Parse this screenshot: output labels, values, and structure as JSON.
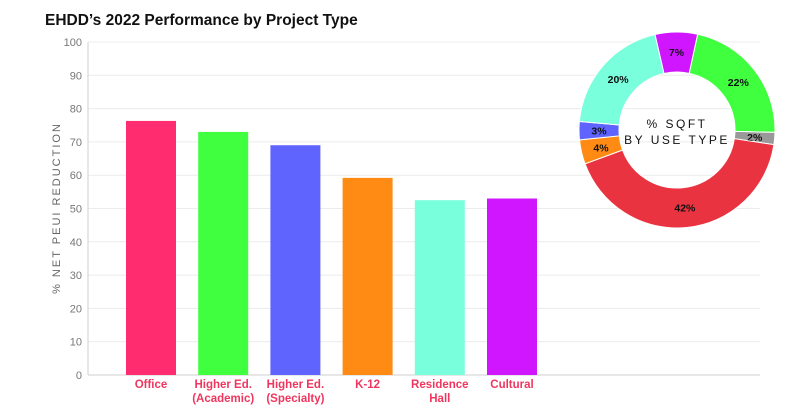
{
  "chart_data": [
    {
      "type": "bar",
      "title": "EHDD’s 2022 Performance by Project Type",
      "ylabel": "% NET PEUI REDUCTION",
      "xlabel": "",
      "ylim": [
        0,
        100
      ],
      "yticks": [
        0,
        10,
        20,
        30,
        40,
        50,
        60,
        70,
        80,
        90,
        100
      ],
      "grid": true,
      "categories": [
        [
          "Office"
        ],
        [
          "Higher Ed.",
          "(Academic)"
        ],
        [
          "Higher Ed.",
          "(Specialty)"
        ],
        [
          "K-12"
        ],
        [
          "Residence",
          "Hall"
        ],
        [
          "Cultural"
        ]
      ],
      "values": [
        76.3,
        73,
        69,
        59.2,
        52.5,
        53
      ],
      "colors": [
        "#ff2d6f",
        "#3fff3f",
        "#5f64ff",
        "#ff8a14",
        "#7affdd",
        "#d016ff"
      ],
      "label_color": "#f0365f"
    },
    {
      "type": "pie",
      "center_label": [
        "% SQFT",
        "BY USE TYPE"
      ],
      "slices": [
        {
          "value": 7,
          "label": "7%",
          "color": "#d016ff"
        },
        {
          "value": 22,
          "label": "22%",
          "color": "#3fff3f"
        },
        {
          "value": 2,
          "label": "2%",
          "color": "#999999"
        },
        {
          "value": 42,
          "label": "42%",
          "color": "#ea3340"
        },
        {
          "value": 4,
          "label": "4%",
          "color": "#ff8a14"
        },
        {
          "value": 3,
          "label": "3%",
          "color": "#5f64ff"
        },
        {
          "value": 20,
          "label": "20%",
          "color": "#7affdd"
        }
      ]
    }
  ]
}
